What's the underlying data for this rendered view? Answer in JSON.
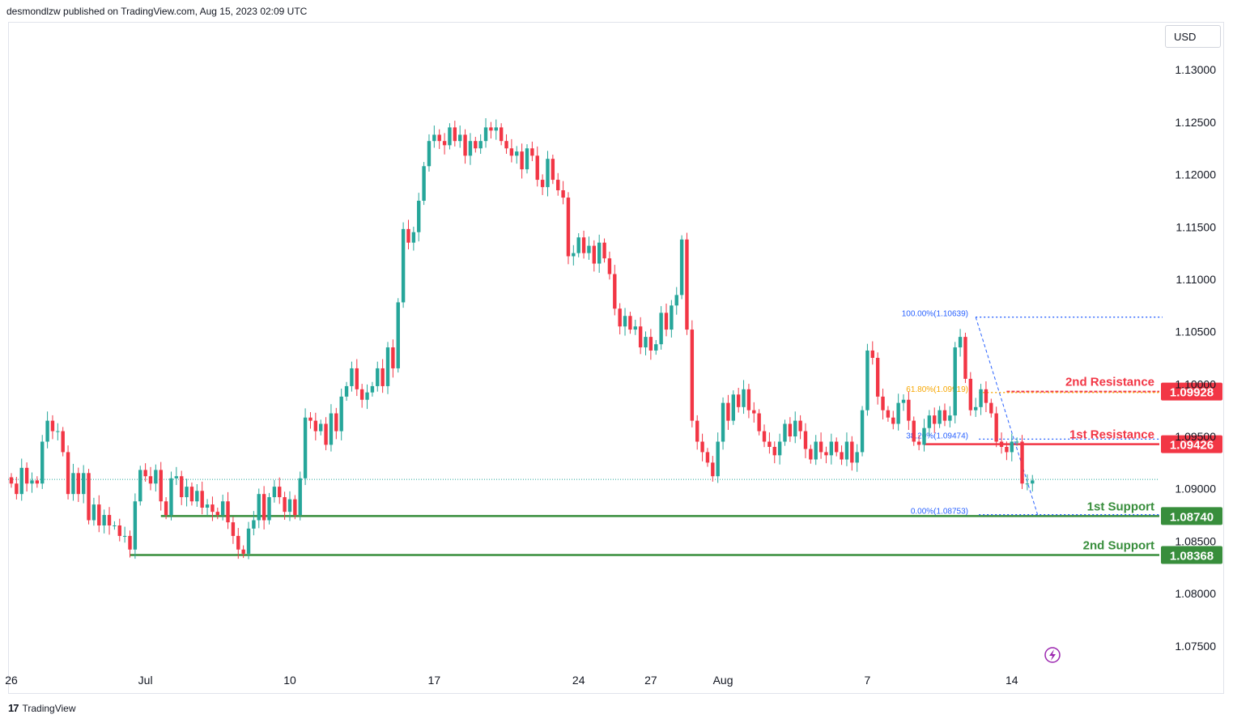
{
  "header": {
    "publisher_line": "desmondlzw published on TradingView.com, Aug 15, 2023 02:09 UTC"
  },
  "currency_label": "USD",
  "footer": {
    "brand": "TradingView",
    "logo_glyph": "17"
  },
  "colors": {
    "up": "#26a69a",
    "down": "#f23645",
    "support": "#388e3c",
    "resistance": "#f23645",
    "fib": "#2962ff",
    "fib_mid": "#f7a600",
    "axis_text": "#131722"
  },
  "chart_data": {
    "type": "candlestick",
    "symbol_currency": "USD",
    "ylim": [
      1.0705,
      1.1345
    ],
    "y_ticks": [
      "1.13000",
      "1.12500",
      "1.12000",
      "1.11500",
      "1.11000",
      "1.10500",
      "1.10000",
      "1.09500",
      "1.09000",
      "1.08500",
      "1.08000",
      "1.07500"
    ],
    "x_ticks": [
      {
        "label": "26",
        "bar": 0
      },
      {
        "label": "Jul",
        "bar": 26
      },
      {
        "label": "10",
        "bar": 54
      },
      {
        "label": "17",
        "bar": 82
      },
      {
        "label": "24",
        "bar": 110
      },
      {
        "label": "27",
        "bar": 124
      },
      {
        "label": "Aug",
        "bar": 138
      },
      {
        "label": "7",
        "bar": 166
      },
      {
        "label": "14",
        "bar": 194
      }
    ],
    "last_price": 1.0909,
    "levels": [
      {
        "name": "2nd Resistance",
        "value": 1.09928,
        "kind": "resistance",
        "start_bar": 193
      },
      {
        "name": "1st Resistance",
        "value": 1.09426,
        "kind": "resistance",
        "start_bar": 177
      },
      {
        "name": "1st Support",
        "value": 1.0874,
        "kind": "support",
        "start_bar": 29
      },
      {
        "name": "2nd Support",
        "value": 1.08368,
        "kind": "support",
        "start_bar": 23
      }
    ],
    "level_value_labels": [
      "1.09928",
      "1.09426",
      "1.08740",
      "1.08368"
    ],
    "fibonacci": [
      {
        "label": "100.00%(1.10639)",
        "value": 1.10639,
        "color": "fib"
      },
      {
        "label": "61.80%(1.09919)",
        "value": 1.09919,
        "color": "fib_mid"
      },
      {
        "label": "38.20%(1.09474)",
        "value": 1.09474,
        "color": "fib"
      },
      {
        "label": "0.00%(1.08753)",
        "value": 1.08753,
        "color": "fib"
      }
    ],
    "closes": [
      1.0905,
      1.0895,
      1.092,
      1.0905,
      1.0908,
      1.0905,
      1.0945,
      1.0965,
      1.0955,
      1.0955,
      1.0935,
      1.0895,
      1.0915,
      1.0895,
      1.0915,
      1.087,
      1.0885,
      1.0865,
      1.0875,
      1.0865,
      1.0865,
      1.0855,
      1.0855,
      1.0842,
      1.0888,
      1.0918,
      1.0912,
      1.0905,
      1.0918,
      1.0888,
      1.0875,
      1.091,
      1.0912,
      1.0892,
      1.0902,
      1.0888,
      1.0898,
      1.0882,
      1.0885,
      1.0878,
      1.0875,
      1.0888,
      1.0868,
      1.0855,
      1.0842,
      1.0838,
      1.0862,
      1.087,
      1.0895,
      1.087,
      1.0892,
      1.0902,
      1.0892,
      1.0878,
      1.089,
      1.0875,
      1.091,
      1.0968,
      1.0965,
      1.0955,
      1.0962,
      1.0942,
      1.0972,
      1.0955,
      1.0988,
      1.0998,
      1.1015,
      1.0995,
      1.0985,
      1.0992,
      1.0998,
      1.1015,
      1.0998,
      1.1035,
      1.1015,
      1.1078,
      1.1148,
      1.1135,
      1.1145,
      1.1175,
      1.1208,
      1.1232,
      1.1238,
      1.1232,
      1.1228,
      1.1245,
      1.1232,
      1.1238,
      1.1218,
      1.1232,
      1.1225,
      1.1232,
      1.1245,
      1.1242,
      1.1245,
      1.1232,
      1.1225,
      1.1218,
      1.1222,
      1.1205,
      1.1225,
      1.1218,
      1.1195,
      1.1188,
      1.1215,
      1.1195,
      1.1185,
      1.1178,
      1.1122,
      1.1125,
      1.114,
      1.1125,
      1.1132,
      1.1115,
      1.1135,
      1.112,
      1.1105,
      1.1072,
      1.1055,
      1.1065,
      1.1052,
      1.1055,
      1.1035,
      1.1045,
      1.1032,
      1.1038,
      1.1068,
      1.1052,
      1.1075,
      1.1085,
      1.1138,
      1.1052,
      1.0965,
      1.0945,
      1.0935,
      1.0925,
      1.0912,
      1.0945,
      1.0982,
      1.0965,
      1.099,
      1.0978,
      1.0995,
      1.0975,
      1.0972,
      1.0955,
      1.0945,
      1.094,
      1.0932,
      1.0945,
      1.0962,
      1.095,
      1.0965,
      1.0955,
      1.0938,
      1.0928,
      1.0945,
      1.0935,
      1.0932,
      1.0945,
      1.0935,
      1.0928,
      1.0945,
      1.0925,
      1.0935,
      1.0975,
      1.1032,
      1.1025,
      1.0988,
      1.0975,
      1.0968,
      1.0962,
      1.0982,
      1.0985,
      1.0965,
      1.0945,
      1.0942,
      1.0958,
      1.097,
      1.0962,
      1.0975,
      1.0965,
      1.097,
      1.1035,
      1.1045,
      1.1005,
      1.0975,
      1.0978,
      1.0995,
      1.0982,
      1.0972,
      1.0945,
      1.094,
      1.0935,
      1.0945,
      1.0945,
      1.0905,
      1.0905,
      1.0908
    ]
  }
}
